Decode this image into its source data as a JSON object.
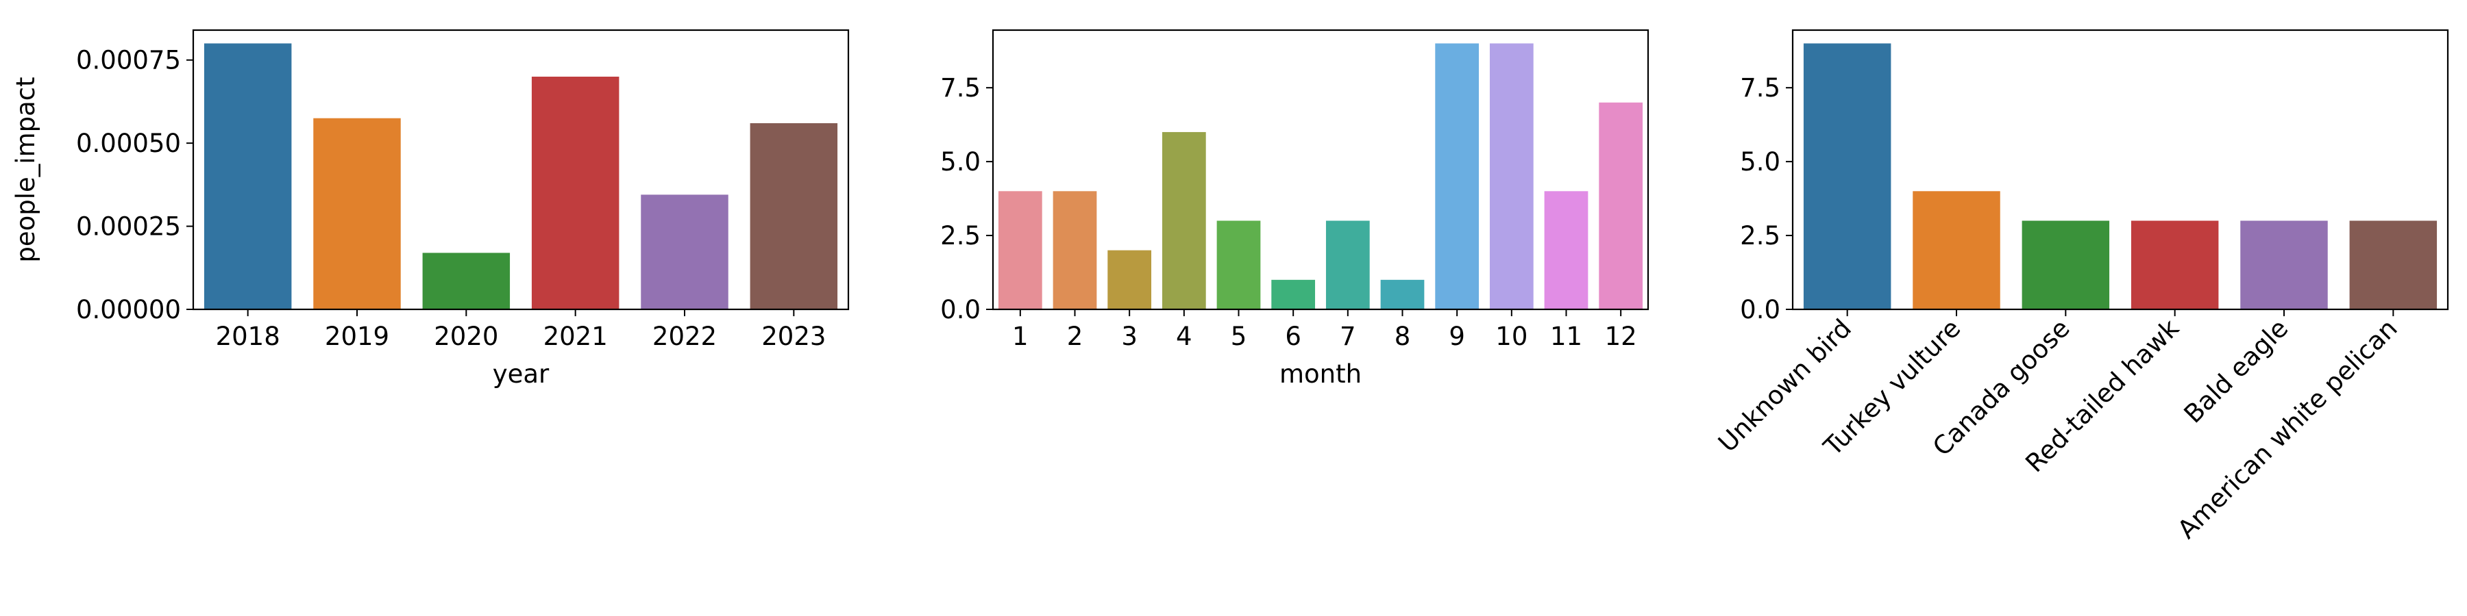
{
  "chart_data": [
    {
      "type": "bar",
      "categories": [
        "2018",
        "2019",
        "2020",
        "2021",
        "2022",
        "2023"
      ],
      "values": [
        0.0008,
        0.000575,
        0.00017,
        0.0007,
        0.000345,
        0.00056
      ],
      "xlabel": "year",
      "ylabel": "people_impact",
      "ylim": [
        0,
        0.00084
      ],
      "yticks": [
        "0.00000",
        "0.00025",
        "0.00050",
        "0.00075"
      ],
      "ytick_values": [
        0,
        0.00025,
        0.0005,
        0.00075
      ],
      "colors": [
        "#3274a1",
        "#e1812c",
        "#3a923a",
        "#c03d3e",
        "#9372b2",
        "#845b53"
      ],
      "grid": false
    },
    {
      "type": "bar",
      "categories": [
        "1",
        "2",
        "3",
        "4",
        "5",
        "6",
        "7",
        "8",
        "9",
        "10",
        "11",
        "12"
      ],
      "values": [
        4,
        4,
        2,
        6,
        3,
        1,
        3,
        1,
        9,
        9,
        4,
        7
      ],
      "xlabel": "month",
      "ylabel": "",
      "ylim": [
        0,
        9.45
      ],
      "yticks": [
        "0.0",
        "2.5",
        "5.0",
        "7.5"
      ],
      "ytick_values": [
        0,
        2.5,
        5,
        7.5
      ],
      "colors": [
        "#e68f96",
        "#de8e55",
        "#b89a3f",
        "#98a34a",
        "#5fb04d",
        "#3db17b",
        "#3fad9c",
        "#41a9b4",
        "#6aaee1",
        "#b2a2e8",
        "#e18de5",
        "#e68cc7"
      ],
      "grid": false
    },
    {
      "type": "bar",
      "categories": [
        "Unknown bird",
        "Turkey vulture",
        "Canada goose",
        "Red-tailed hawk",
        "Bald eagle",
        "American white pelican"
      ],
      "values": [
        9,
        4,
        3,
        3,
        3,
        3
      ],
      "xlabel": "",
      "ylabel": "",
      "ylim": [
        0,
        9.45
      ],
      "yticks": [
        "0.0",
        "2.5",
        "5.0",
        "7.5"
      ],
      "ytick_values": [
        0,
        2.5,
        5,
        7.5
      ],
      "colors": [
        "#3274a1",
        "#e1812c",
        "#3a923a",
        "#c03d3e",
        "#9372b2",
        "#845b53"
      ],
      "rotate_xticks": true,
      "grid": false
    }
  ]
}
